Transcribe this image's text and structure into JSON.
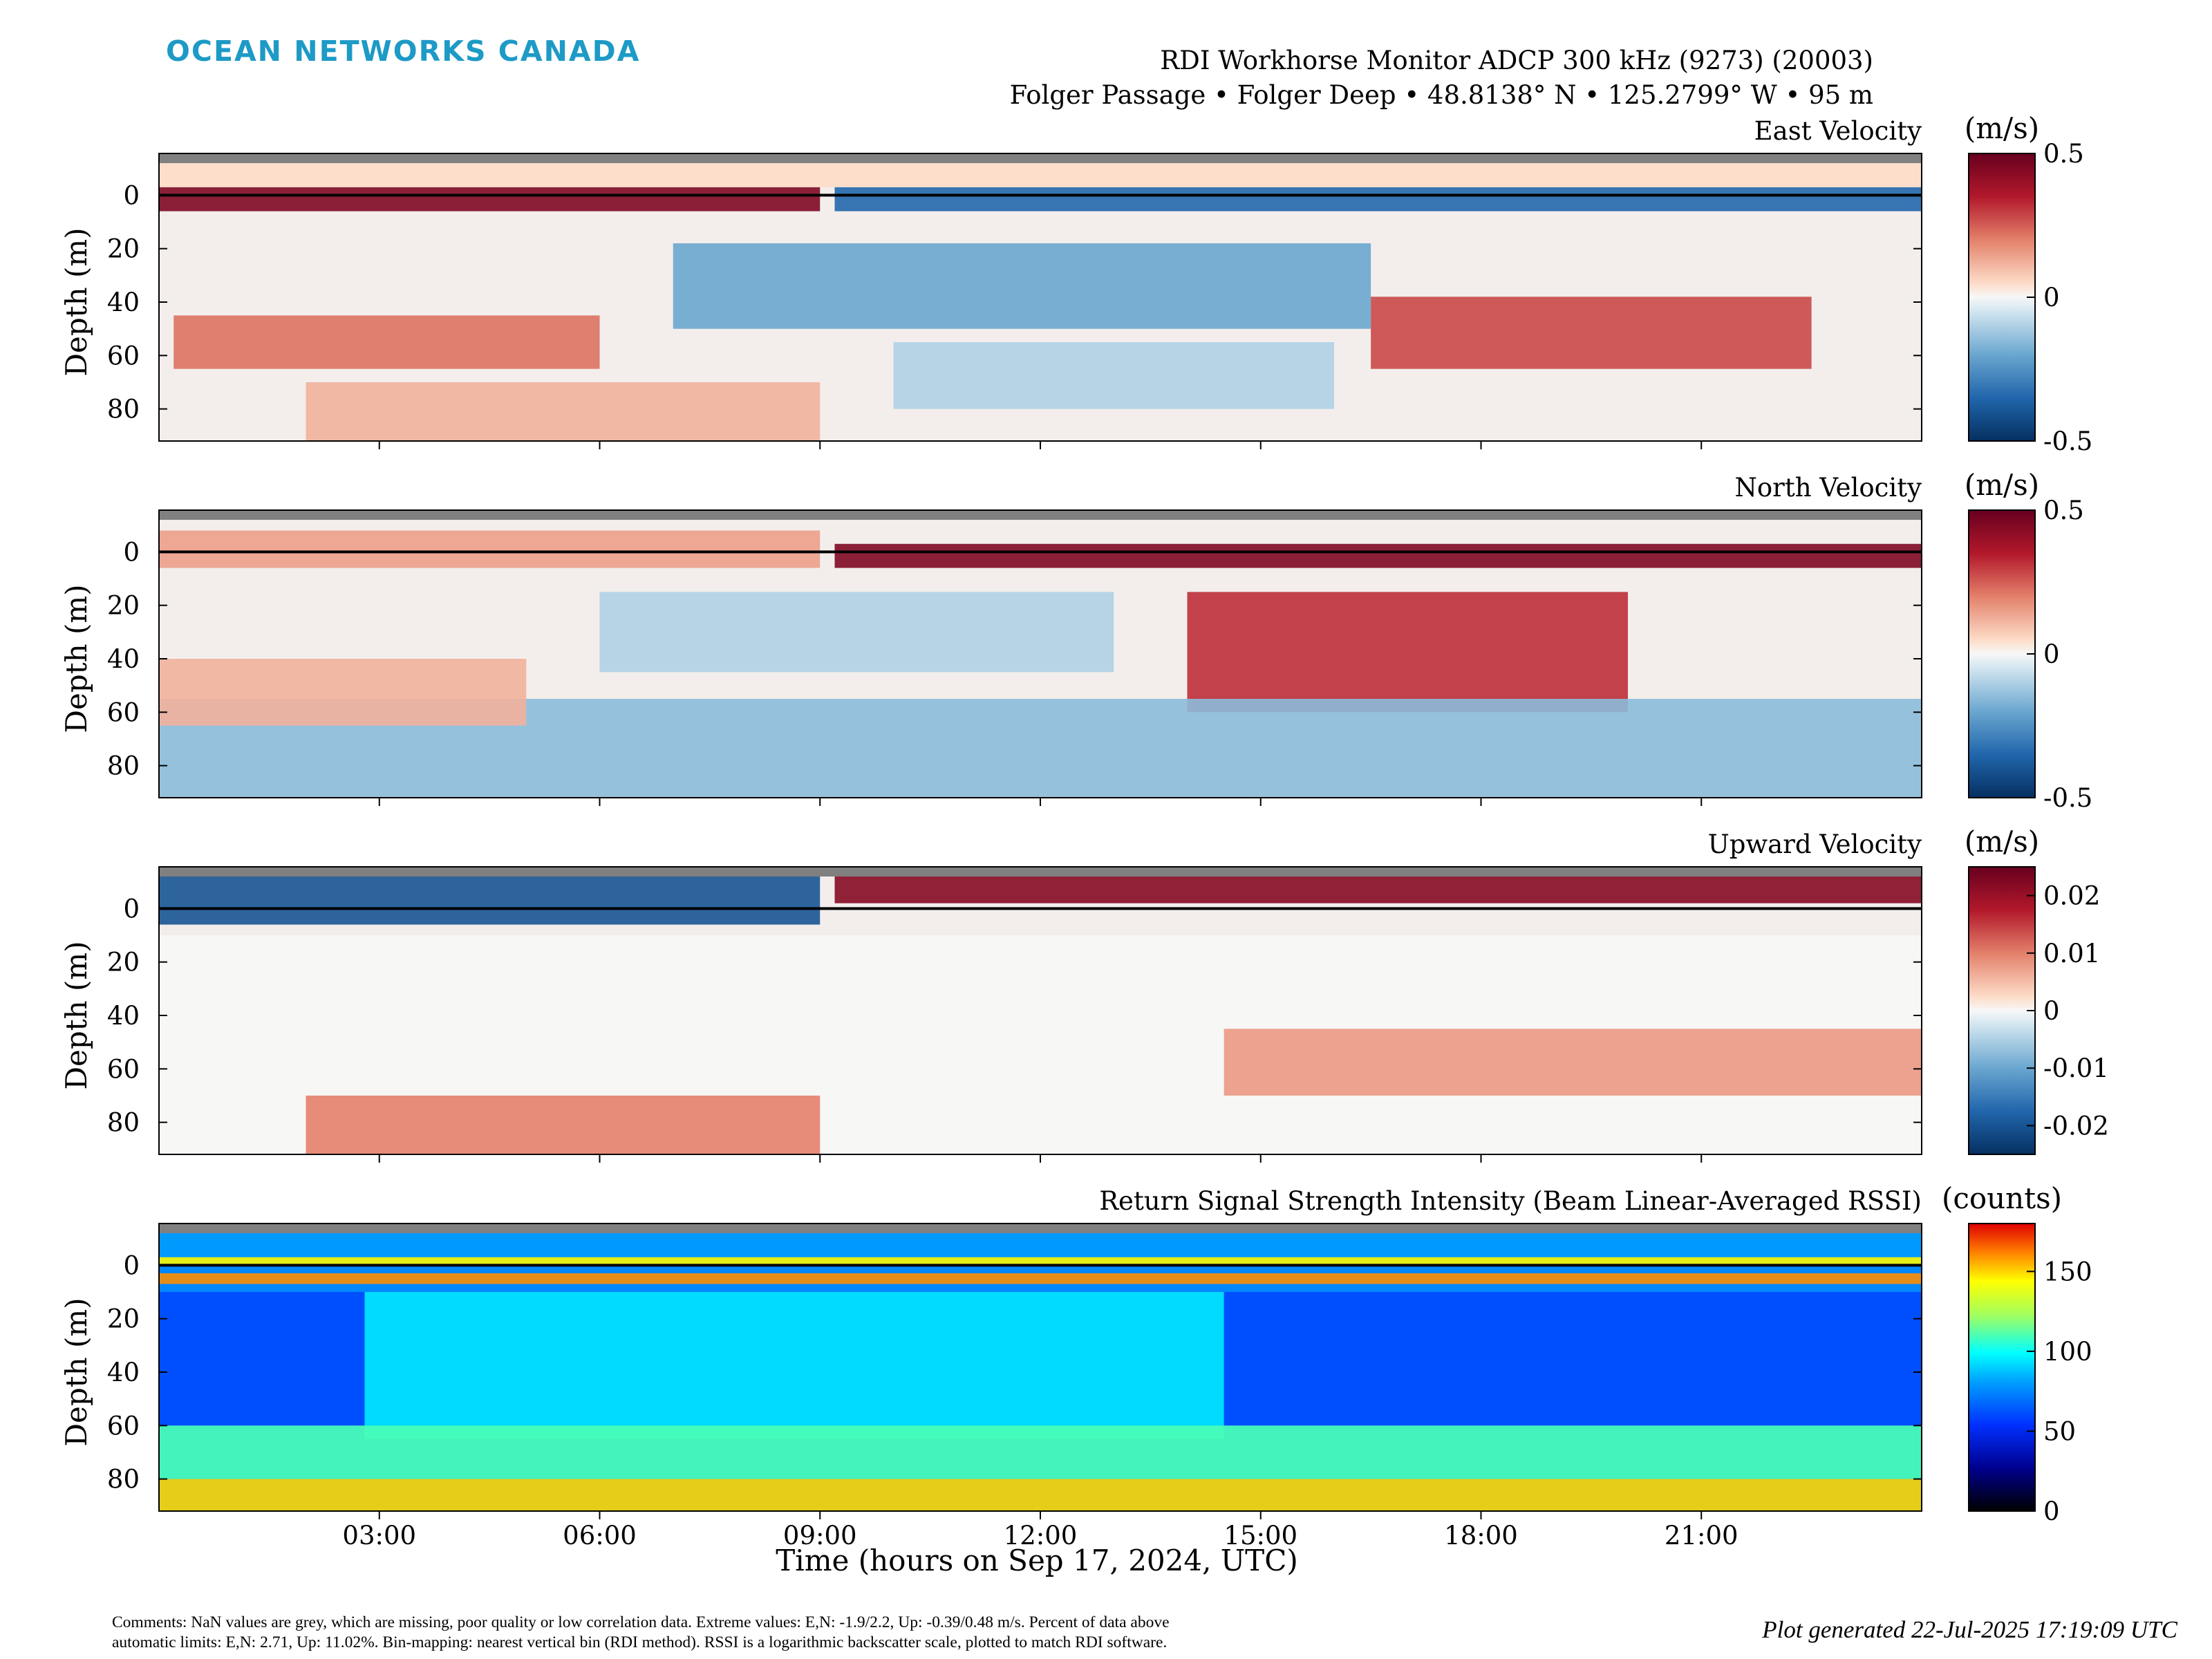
{
  "brand": "OCEAN NETWORKS CANADA",
  "header": {
    "title_line1": "RDI Workhorse Monitor ADCP 300 kHz (9273) (20003)",
    "title_line2": "Folger Passage • Folger Deep • 48.8138° N • 125.2799° W • 95 m"
  },
  "colors": {
    "brand": "#1d9ac6",
    "nan_grey": "#808080",
    "diverging_neg": "#053061",
    "diverging_zero": "#f7f7f7",
    "diverging_pos": "#67001f",
    "jet_low": "#000000",
    "jet_high": "#e00000"
  },
  "footer": {
    "comment_line1": "Comments: NaN values are grey, which are missing, poor quality or low correlation data. Extreme values: E,N: -1.9/2.2, Up: -0.39/0.48 m/s. Percent of data above",
    "comment_line2": "automatic limits: E,N: 2.71, Up: 11.02%. Bin-mapping: nearest vertical bin (RDI method). RSSI is a logarithmic backscatter scale, plotted to match RDI software.",
    "generated": "Plot generated 22-Jul-2025 17:19:09 UTC"
  },
  "x_axis": {
    "label": "Time (hours on Sep 17, 2024, UTC)",
    "range_hours": [
      0,
      24
    ],
    "ticks": [
      3,
      6,
      9,
      12,
      15,
      18,
      21
    ],
    "tick_labels": [
      "03:00",
      "06:00",
      "09:00",
      "12:00",
      "15:00",
      "18:00",
      "21:00"
    ]
  },
  "chart_data": [
    {
      "type": "heatmap",
      "title": "East Velocity",
      "ylabel": "Depth (m)",
      "ylim": [
        -12,
        92
      ],
      "yticks": [
        0,
        20,
        40,
        60,
        80
      ],
      "colorbar": {
        "unit": "(m/s)",
        "range": [
          -0.5,
          0.5
        ],
        "ticks": [
          0.5,
          0,
          -0.5
        ],
        "tick_labels": [
          "0.5",
          "0",
          "-0.5"
        ],
        "colormap": "diverging"
      },
      "features": [
        {
          "t0": 0,
          "t1": 9,
          "d0": -3,
          "d1": 6,
          "value": 0.45
        },
        {
          "t0": 9.2,
          "t1": 24,
          "d0": -3,
          "d1": 6,
          "value": -0.35
        },
        {
          "t0": 0,
          "t1": 24,
          "d0": -12,
          "d1": -3,
          "value": 0.05
        },
        {
          "t0": 0.2,
          "t1": 6,
          "d0": 45,
          "d1": 65,
          "value": 0.22
        },
        {
          "t0": 7,
          "t1": 16.5,
          "d0": 18,
          "d1": 50,
          "value": -0.2
        },
        {
          "t0": 16.5,
          "t1": 22.5,
          "d0": 38,
          "d1": 65,
          "value": 0.28
        },
        {
          "t0": 2,
          "t1": 9,
          "d0": 70,
          "d1": 92,
          "value": 0.12
        },
        {
          "t0": 10,
          "t1": 16,
          "d0": 55,
          "d1": 80,
          "value": -0.1
        }
      ]
    },
    {
      "type": "heatmap",
      "title": "North Velocity",
      "ylabel": "Depth (m)",
      "ylim": [
        -12,
        92
      ],
      "yticks": [
        0,
        20,
        40,
        60,
        80
      ],
      "colorbar": {
        "unit": "(m/s)",
        "range": [
          -0.5,
          0.5
        ],
        "ticks": [
          0.5,
          0,
          -0.5
        ],
        "tick_labels": [
          "0.5",
          "0",
          "-0.5"
        ],
        "colormap": "diverging"
      },
      "features": [
        {
          "t0": 0,
          "t1": 9,
          "d0": -8,
          "d1": 6,
          "value": 0.15
        },
        {
          "t0": 9.2,
          "t1": 24,
          "d0": -3,
          "d1": 6,
          "value": 0.45
        },
        {
          "t0": 14,
          "t1": 20,
          "d0": 15,
          "d1": 60,
          "value": 0.32
        },
        {
          "t0": 0,
          "t1": 24,
          "d0": 55,
          "d1": 92,
          "value": -0.15
        },
        {
          "t0": 0,
          "t1": 5,
          "d0": 40,
          "d1": 65,
          "value": 0.12
        },
        {
          "t0": 6,
          "t1": 13,
          "d0": 15,
          "d1": 45,
          "value": -0.1
        }
      ]
    },
    {
      "type": "heatmap",
      "title": "Upward Velocity",
      "ylabel": "Depth (m)",
      "ylim": [
        -12,
        92
      ],
      "yticks": [
        0,
        20,
        40,
        60,
        80
      ],
      "colorbar": {
        "unit": "(m/s)",
        "range": [
          -0.025,
          0.025
        ],
        "ticks": [
          0.02,
          0.01,
          0,
          -0.01,
          -0.02
        ],
        "tick_labels": [
          "0.02",
          "0.01",
          "0",
          "-0.01",
          "-0.02"
        ],
        "colormap": "diverging"
      },
      "features": [
        {
          "t0": 0,
          "t1": 9,
          "d0": -12,
          "d1": 6,
          "value": -0.02
        },
        {
          "t0": 9.2,
          "t1": 24,
          "d0": -12,
          "d1": -2,
          "value": 0.022
        },
        {
          "t0": 0,
          "t1": 24,
          "d0": 10,
          "d1": 92,
          "value": 0.0
        },
        {
          "t0": 14.5,
          "t1": 24,
          "d0": 45,
          "d1": 70,
          "value": 0.008
        },
        {
          "t0": 2,
          "t1": 9,
          "d0": 70,
          "d1": 92,
          "value": 0.01
        }
      ]
    },
    {
      "type": "heatmap",
      "title": "Return Signal Strength Intensity (Beam Linear-Averaged RSSI)",
      "ylabel": "Depth (m)",
      "ylim": [
        -12,
        92
      ],
      "yticks": [
        0,
        20,
        40,
        60,
        80
      ],
      "colorbar": {
        "unit": "(counts)",
        "range": [
          0,
          180
        ],
        "ticks": [
          150,
          100,
          50,
          0
        ],
        "tick_labels": [
          "150",
          "100",
          "50",
          "0"
        ],
        "colormap": "jet"
      },
      "features": [
        {
          "t0": 0,
          "t1": 24,
          "d0": -12,
          "d1": -3,
          "value": 80
        },
        {
          "t0": 0,
          "t1": 24,
          "d0": -3,
          "d1": 0,
          "value": 145
        },
        {
          "t0": 0,
          "t1": 24,
          "d0": 3,
          "d1": 7,
          "value": 160
        },
        {
          "t0": 0,
          "t1": 24,
          "d0": 10,
          "d1": 60,
          "value": 60
        },
        {
          "t0": 2.8,
          "t1": 14.5,
          "d0": 10,
          "d1": 65,
          "value": 95
        },
        {
          "t0": 0,
          "t1": 24,
          "d0": 60,
          "d1": 80,
          "value": 110
        },
        {
          "t0": 0,
          "t1": 24,
          "d0": 80,
          "d1": 92,
          "value": 150
        }
      ]
    }
  ]
}
